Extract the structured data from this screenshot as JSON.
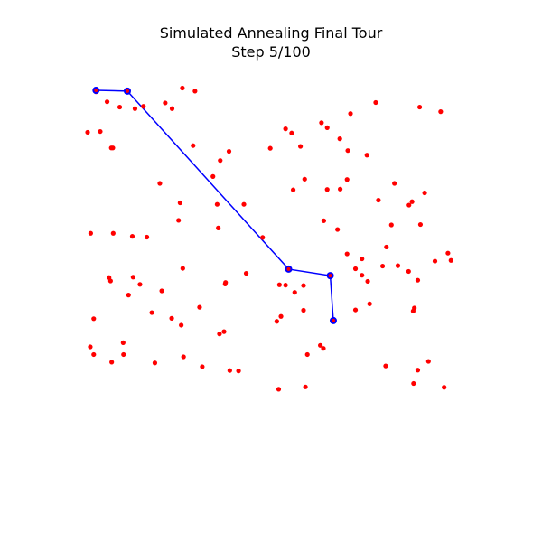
{
  "chart_data": {
    "type": "scatter",
    "title": "Simulated Annealing Final Tour",
    "subtitle": "Step 5/100",
    "xlabel": "",
    "ylabel": "",
    "grid": false,
    "axes_visible": false,
    "xlim": [
      0,
      1
    ],
    "ylim": [
      0,
      1
    ],
    "colors": {
      "cities": "#ff0000",
      "tour": "#0000ff"
    },
    "series": [
      {
        "kind": "cities",
        "points": [
          [
            0.022,
            0.981
          ],
          [
            0.022,
            0.977
          ],
          [
            0.051,
            0.951
          ],
          [
            0.084,
            0.937
          ],
          [
            0.124,
            0.933
          ],
          [
            0.146,
            0.939
          ],
          [
            0.203,
            0.948
          ],
          [
            0.221,
            0.933
          ],
          [
            0.248,
            0.987
          ],
          [
            0.281,
            0.979
          ],
          [
            0.0,
            0.871
          ],
          [
            0.033,
            0.873
          ],
          [
            0.062,
            0.83
          ],
          [
            0.066,
            0.83
          ],
          [
            0.276,
            0.836
          ],
          [
            0.347,
            0.797
          ],
          [
            0.37,
            0.821
          ],
          [
            0.478,
            0.829
          ],
          [
            0.534,
            0.869
          ],
          [
            0.557,
            0.834
          ],
          [
            0.627,
            0.883
          ],
          [
            0.66,
            0.854
          ],
          [
            0.681,
            0.823
          ],
          [
            0.688,
            0.92
          ],
          [
            0.731,
            0.811
          ],
          [
            0.754,
            0.949
          ],
          [
            0.869,
            0.937
          ],
          [
            0.924,
            0.925
          ],
          [
            0.518,
            0.88
          ],
          [
            0.612,
            0.896
          ],
          [
            0.189,
            0.737
          ],
          [
            0.242,
            0.686
          ],
          [
            0.328,
            0.755
          ],
          [
            0.339,
            0.682
          ],
          [
            0.409,
            0.682
          ],
          [
            0.538,
            0.72
          ],
          [
            0.568,
            0.748
          ],
          [
            0.627,
            0.721
          ],
          [
            0.618,
            0.639
          ],
          [
            0.679,
            0.747
          ],
          [
            0.661,
            0.722
          ],
          [
            0.795,
            0.628
          ],
          [
            0.803,
            0.737
          ],
          [
            0.761,
            0.693
          ],
          [
            0.871,
            0.629
          ],
          [
            0.882,
            0.712
          ],
          [
            0.849,
            0.689
          ],
          [
            0.841,
            0.68
          ],
          [
            0.008,
            0.606
          ],
          [
            0.067,
            0.606
          ],
          [
            0.117,
            0.598
          ],
          [
            0.155,
            0.596
          ],
          [
            0.238,
            0.64
          ],
          [
            0.342,
            0.62
          ],
          [
            0.458,
            0.595
          ],
          [
            0.654,
            0.616
          ],
          [
            0.679,
            0.552
          ],
          [
            0.718,
            0.539
          ],
          [
            0.782,
            0.57
          ],
          [
            0.812,
            0.521
          ],
          [
            0.84,
            0.506
          ],
          [
            0.943,
            0.554
          ],
          [
            0.951,
            0.535
          ],
          [
            0.06,
            0.481
          ],
          [
            0.056,
            0.49
          ],
          [
            0.107,
            0.444
          ],
          [
            0.119,
            0.491
          ],
          [
            0.137,
            0.472
          ],
          [
            0.194,
            0.455
          ],
          [
            0.249,
            0.514
          ],
          [
            0.36,
            0.473
          ],
          [
            0.361,
            0.477
          ],
          [
            0.415,
            0.501
          ],
          [
            0.502,
            0.471
          ],
          [
            0.518,
            0.47
          ],
          [
            0.565,
            0.469
          ],
          [
            0.542,
            0.451
          ],
          [
            0.701,
            0.513
          ],
          [
            0.718,
            0.496
          ],
          [
            0.733,
            0.48
          ],
          [
            0.772,
            0.52
          ],
          [
            0.864,
            0.483
          ],
          [
            0.909,
            0.533
          ],
          [
            0.016,
            0.382
          ],
          [
            0.168,
            0.398
          ],
          [
            0.22,
            0.383
          ],
          [
            0.245,
            0.365
          ],
          [
            0.293,
            0.412
          ],
          [
            0.345,
            0.342
          ],
          [
            0.357,
            0.348
          ],
          [
            0.495,
            0.375
          ],
          [
            0.506,
            0.388
          ],
          [
            0.565,
            0.404
          ],
          [
            0.701,
            0.405
          ],
          [
            0.738,
            0.421
          ],
          [
            0.855,
            0.41
          ],
          [
            0.852,
            0.402
          ],
          [
            0.016,
            0.288
          ],
          [
            0.094,
            0.288
          ],
          [
            0.251,
            0.282
          ],
          [
            0.372,
            0.246
          ],
          [
            0.395,
            0.245
          ],
          [
            0.575,
            0.288
          ],
          [
            0.617,
            0.304
          ],
          [
            0.609,
            0.312
          ],
          [
            0.78,
            0.258
          ],
          [
            0.864,
            0.247
          ],
          [
            0.892,
            0.27
          ],
          [
            0.063,
            0.268
          ],
          [
            0.176,
            0.266
          ],
          [
            0.3,
            0.256
          ],
          [
            0.5,
            0.197
          ],
          [
            0.57,
            0.203
          ],
          [
            0.853,
            0.212
          ],
          [
            0.933,
            0.202
          ],
          [
            0.007,
            0.308
          ],
          [
            0.093,
            0.319
          ]
        ]
      },
      {
        "kind": "tour",
        "points": [
          [
            0.022,
            0.981
          ],
          [
            0.104,
            0.979
          ],
          [
            0.526,
            0.512
          ],
          [
            0.635,
            0.495
          ],
          [
            0.643,
            0.377
          ]
        ]
      }
    ]
  }
}
